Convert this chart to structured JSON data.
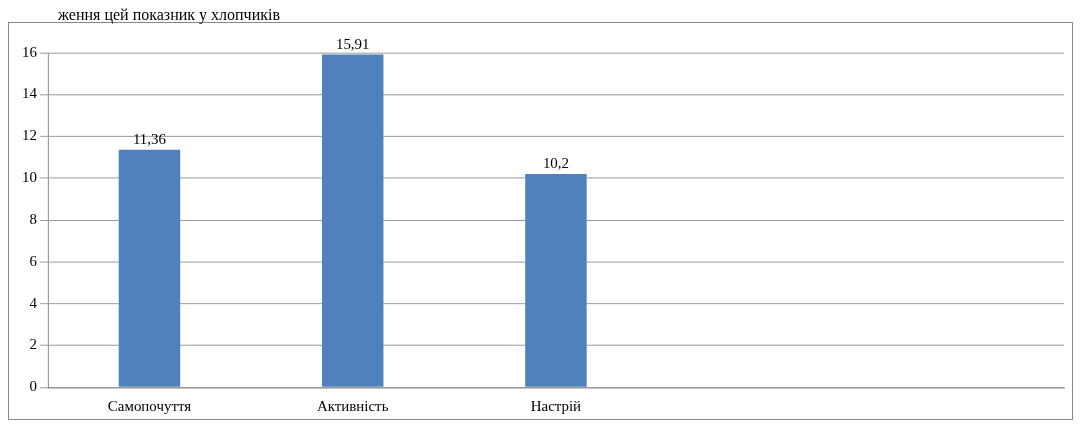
{
  "chart_data": {
    "type": "bar",
    "annotations": [
      "ження цей показник у хлопчиків"
    ],
    "categories": [
      "Самопочуття",
      "Активність",
      "Настрій",
      null,
      null
    ],
    "values": [
      11.36,
      15.91,
      10.2,
      null,
      null
    ],
    "color": "#4f81bd",
    "ylim": [
      0,
      16
    ],
    "yticks": [
      0,
      2,
      4,
      6,
      8,
      10,
      12,
      14,
      16
    ],
    "value_labels": [
      "11,36",
      "15,91",
      "10,2",
      null,
      null
    ],
    "grid": "y",
    "legend": false
  }
}
